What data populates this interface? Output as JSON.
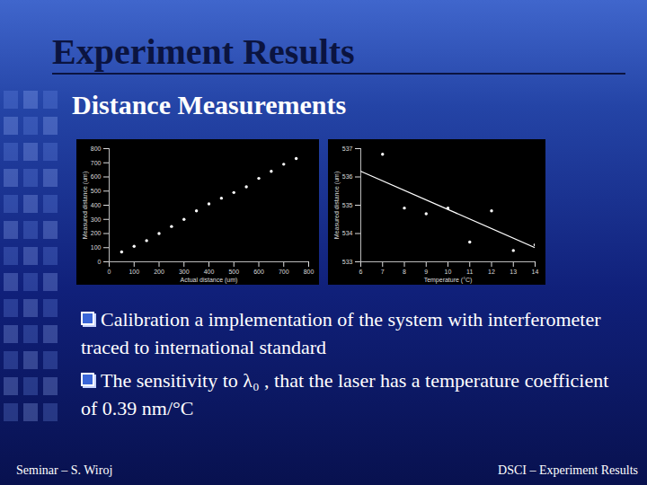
{
  "slide": {
    "title": "Experiment Results",
    "subtitle": "Distance Measurements",
    "bullets": [
      "Calibration a implementation of the system with interferometer traced to international standard",
      "The sensitivity to λ₀ , that the laser has a temperature coefficient of 0.39 nm/°C"
    ],
    "footer_left": "Seminar – S. Wiroj",
    "footer_right": "DSCI – Experiment Results"
  },
  "chart_data": [
    {
      "type": "scatter",
      "x_label": "Actual distance (um)",
      "y_label": "Measured distance (um)",
      "x": [
        50,
        100,
        150,
        200,
        250,
        300,
        350,
        400,
        450,
        500,
        550,
        600,
        650,
        700,
        750
      ],
      "values": [
        70,
        110,
        150,
        200,
        250,
        300,
        360,
        410,
        450,
        490,
        530,
        590,
        640,
        690,
        730
      ],
      "color": "#ffffff",
      "marker": "circle",
      "xlim": [
        0,
        800
      ],
      "xticks": [
        0,
        100,
        200,
        300,
        400,
        500,
        600,
        700,
        800
      ],
      "ylim": [
        0,
        800
      ],
      "yticks": [
        0,
        100,
        200,
        300,
        400,
        500,
        600,
        700,
        800
      ],
      "grid": false
    },
    {
      "type": "scatter",
      "x_label": "Temperature (°C)",
      "y_label": "Measured distance (um)",
      "series": [
        {
          "type": "scatter",
          "color": "#ffffff",
          "marker": "circle",
          "x": [
            7,
            8,
            9,
            10,
            11,
            12,
            13,
            14
          ],
          "values": [
            536.8,
            534.9,
            534.7,
            534.9,
            533.7,
            534.8,
            533.4,
            533.6
          ]
        },
        {
          "type": "line",
          "color": "#ffffff",
          "line_style": "solid",
          "x": [
            6,
            14
          ],
          "values": [
            536.2,
            533.5
          ]
        }
      ],
      "xlim": [
        6,
        14
      ],
      "xticks": [
        6,
        7,
        8,
        9,
        10,
        11,
        12,
        13,
        14
      ],
      "ylim": [
        533,
        537
      ],
      "yticks": [
        533,
        534,
        535,
        536,
        537
      ],
      "grid": false
    }
  ]
}
